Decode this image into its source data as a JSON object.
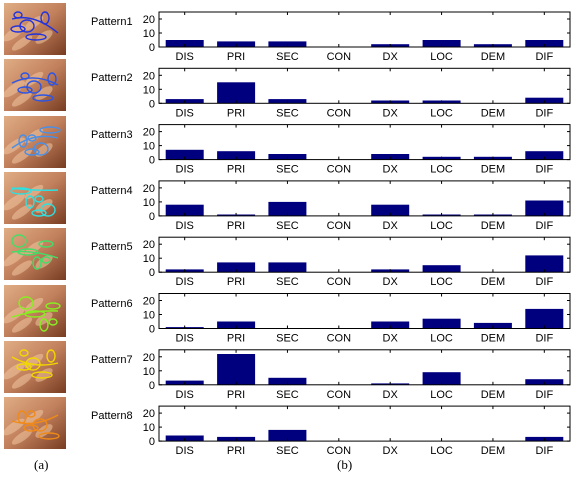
{
  "captions": {
    "a": "(a)",
    "b": "(b)"
  },
  "colors": {
    "bar": "#00007f",
    "axis": "#000000",
    "thumb_trace": [
      "#2233dd",
      "#2a55e8",
      "#4a8fe6",
      "#2ee0e0",
      "#44dd66",
      "#88ee22",
      "#f2d800",
      "#f08a18"
    ]
  },
  "chart_data": {
    "type": "bar",
    "categories": [
      "DIS",
      "PRI",
      "SEC",
      "CON",
      "DX",
      "LOC",
      "DEM",
      "DIF"
    ],
    "ylim": [
      0,
      25
    ],
    "yticks": [
      "0",
      "10",
      "20"
    ],
    "grid": false,
    "panels": [
      {
        "name": "Pattern1",
        "values": [
          5,
          4,
          4,
          0,
          2,
          5,
          2,
          5
        ]
      },
      {
        "name": "Pattern2",
        "values": [
          3,
          15,
          3,
          0,
          2,
          2,
          0,
          4
        ]
      },
      {
        "name": "Pattern3",
        "values": [
          7,
          6,
          4,
          0,
          4,
          2,
          2,
          6
        ]
      },
      {
        "name": "Pattern4",
        "values": [
          8,
          1,
          10,
          0,
          8,
          1,
          1,
          11
        ]
      },
      {
        "name": "Pattern5",
        "values": [
          2,
          7,
          7,
          0,
          2,
          5,
          0,
          12
        ]
      },
      {
        "name": "Pattern6",
        "values": [
          1,
          5,
          0,
          0,
          5,
          7,
          4,
          14
        ]
      },
      {
        "name": "Pattern7",
        "values": [
          3,
          22,
          5,
          0,
          1,
          9,
          0,
          4
        ]
      },
      {
        "name": "Pattern8",
        "values": [
          4,
          3,
          8,
          0,
          0,
          0,
          0,
          3
        ]
      }
    ]
  }
}
